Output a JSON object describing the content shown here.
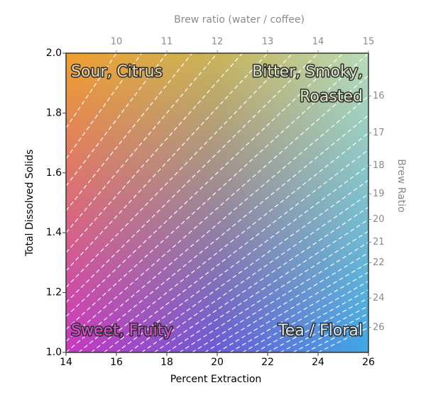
{
  "chart_data": {
    "type": "brew_control",
    "title": "Brew ratio (water / coffee)",
    "x_label": "Percent Extraction",
    "y_label": "Total Dissolved Solids",
    "y2_label": "Brew Ratio",
    "xlim": [
      14,
      26
    ],
    "xticks": [
      14,
      16,
      18,
      20,
      22,
      24,
      26
    ],
    "ylim": [
      1.0,
      2.0
    ],
    "yticks": [
      {
        "value": 1.0,
        "label": "1.0"
      },
      1.2,
      1.4,
      1.6,
      1.8,
      {
        "value": 2.0,
        "label": "2.0"
      }
    ],
    "x2ticks": [
      10,
      11,
      12,
      13,
      14,
      15
    ],
    "y2ticks": [
      16,
      17,
      18,
      19,
      20,
      21,
      22,
      24,
      26
    ],
    "ratio_lines": [
      10,
      10.5,
      11,
      11.5,
      12,
      12.5,
      13,
      13.5,
      14,
      14.5,
      15,
      15.5,
      16,
      16.5,
      17,
      17.5,
      18,
      18.5,
      19,
      19.5,
      20,
      20.5,
      21,
      21.5,
      22,
      22.5,
      23,
      23.5,
      24,
      24.5,
      25,
      25.5,
      26
    ],
    "regions": [
      {
        "lines": [
          "Sour, Citrus"
        ],
        "corner": "top-left",
        "color": "#f3d7a0"
      },
      {
        "lines": [
          "Bitter, Smoky,",
          "Roasted"
        ],
        "corner": "top-right",
        "color": "#dfe6c4"
      },
      {
        "lines": [
          "Sweet, Fruity"
        ],
        "corner": "bottom-left",
        "color": "#e24fd8"
      },
      {
        "lines": [
          "Tea / Floral"
        ],
        "corner": "bottom-right",
        "color": "#d6e6f4"
      }
    ]
  }
}
